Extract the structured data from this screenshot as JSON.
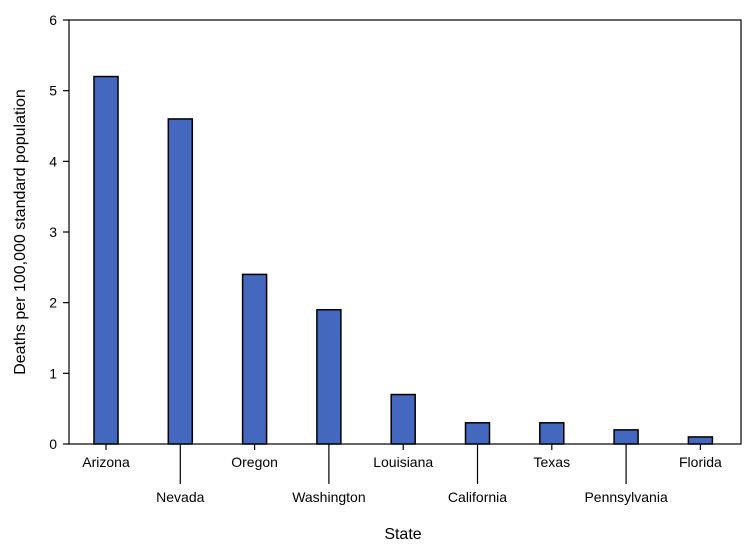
{
  "chart_data": {
    "type": "bar",
    "title": "",
    "xlabel": "State",
    "ylabel": "Deaths per 100,000 standard population",
    "categories": [
      "Arizona",
      "Nevada",
      "Oregon",
      "Washington",
      "Louisiana",
      "California",
      "Texas",
      "Pennsylvania",
      "Florida"
    ],
    "values": [
      5.2,
      4.6,
      2.4,
      1.9,
      0.7,
      0.3,
      0.3,
      0.2,
      0.1
    ],
    "ylim": [
      0,
      6
    ],
    "yticks": [
      "0",
      "1",
      "2",
      "3",
      "4",
      "5",
      "6"
    ],
    "grid": false,
    "legend": "none",
    "colors": {
      "bar_fill": "#4468be",
      "bar_stroke": "#000000",
      "axis": "#000000"
    }
  }
}
